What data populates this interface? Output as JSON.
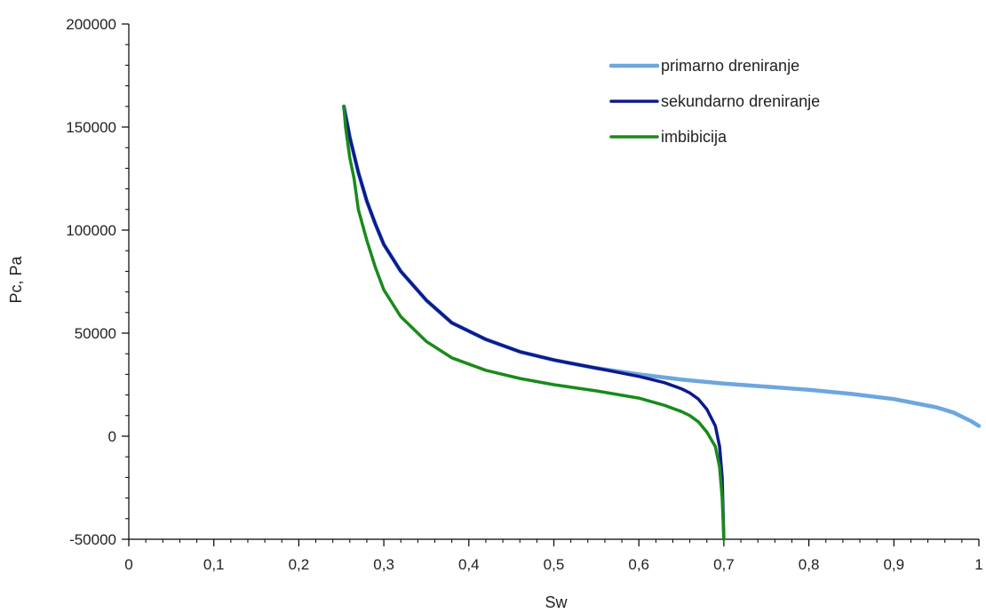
{
  "chart_data": {
    "type": "line",
    "title": "",
    "xlabel": "Sw",
    "ylabel": "Pc, Pa",
    "xlim": [
      0,
      1
    ],
    "ylim": [
      -50000,
      200000
    ],
    "x_ticks": [
      0,
      0.1,
      0.2,
      0.3,
      0.4,
      0.5,
      0.6,
      0.7,
      0.8,
      0.9,
      1
    ],
    "x_tick_labels": [
      "0",
      "0,1",
      "0,2",
      "0,3",
      "0,4",
      "0,5",
      "0,6",
      "0,7",
      "0,8",
      "0,9",
      "1"
    ],
    "y_ticks": [
      -50000,
      0,
      50000,
      100000,
      150000,
      200000
    ],
    "y_tick_labels": [
      "-50000",
      "0",
      "50000",
      "100000",
      "150000",
      "200000"
    ],
    "x_minor_step": 0.02,
    "y_minor_step": 10000,
    "grid": false,
    "legend_position": "top-right",
    "series": [
      {
        "name": "primarno dreniranje",
        "color": "#6ea6de",
        "points": [
          [
            0.253,
            160000
          ],
          [
            0.26,
            145000
          ],
          [
            0.27,
            128000
          ],
          [
            0.28,
            114000
          ],
          [
            0.29,
            103000
          ],
          [
            0.3,
            93000
          ],
          [
            0.32,
            80000
          ],
          [
            0.35,
            66000
          ],
          [
            0.38,
            55000
          ],
          [
            0.42,
            47000
          ],
          [
            0.46,
            41000
          ],
          [
            0.5,
            37000
          ],
          [
            0.55,
            33000
          ],
          [
            0.6,
            30000
          ],
          [
            0.65,
            27500
          ],
          [
            0.7,
            25500
          ],
          [
            0.75,
            24000
          ],
          [
            0.8,
            22500
          ],
          [
            0.85,
            20500
          ],
          [
            0.9,
            18000
          ],
          [
            0.95,
            14000
          ],
          [
            0.97,
            11500
          ],
          [
            0.98,
            9500
          ],
          [
            0.99,
            7500
          ],
          [
            1.0,
            5000
          ]
        ]
      },
      {
        "name": "sekundarno dreniranje",
        "color": "#0d1a8c",
        "points": [
          [
            0.253,
            160000
          ],
          [
            0.26,
            145000
          ],
          [
            0.27,
            128000
          ],
          [
            0.28,
            114000
          ],
          [
            0.29,
            103000
          ],
          [
            0.3,
            93000
          ],
          [
            0.32,
            80000
          ],
          [
            0.35,
            66000
          ],
          [
            0.38,
            55000
          ],
          [
            0.42,
            47000
          ],
          [
            0.46,
            41000
          ],
          [
            0.5,
            37000
          ],
          [
            0.55,
            33000
          ],
          [
            0.6,
            29000
          ],
          [
            0.63,
            26000
          ],
          [
            0.65,
            23000
          ],
          [
            0.66,
            21000
          ],
          [
            0.67,
            18000
          ],
          [
            0.68,
            13000
          ],
          [
            0.69,
            5000
          ],
          [
            0.695,
            -5000
          ],
          [
            0.698,
            -20000
          ],
          [
            0.7,
            -50000
          ]
        ]
      },
      {
        "name": "imbibicija",
        "color": "#1a8a1a",
        "points": [
          [
            0.253,
            160000
          ],
          [
            0.255,
            150000
          ],
          [
            0.26,
            135000
          ],
          [
            0.265,
            125000
          ],
          [
            0.27,
            110000
          ],
          [
            0.28,
            95000
          ],
          [
            0.29,
            82000
          ],
          [
            0.3,
            71000
          ],
          [
            0.32,
            58000
          ],
          [
            0.35,
            46000
          ],
          [
            0.38,
            38000
          ],
          [
            0.42,
            32000
          ],
          [
            0.46,
            28000
          ],
          [
            0.5,
            25000
          ],
          [
            0.55,
            22000
          ],
          [
            0.6,
            18500
          ],
          [
            0.63,
            15000
          ],
          [
            0.65,
            12000
          ],
          [
            0.66,
            10000
          ],
          [
            0.67,
            7000
          ],
          [
            0.68,
            2000
          ],
          [
            0.69,
            -5000
          ],
          [
            0.695,
            -15000
          ],
          [
            0.698,
            -30000
          ],
          [
            0.7,
            -50000
          ]
        ]
      }
    ]
  }
}
